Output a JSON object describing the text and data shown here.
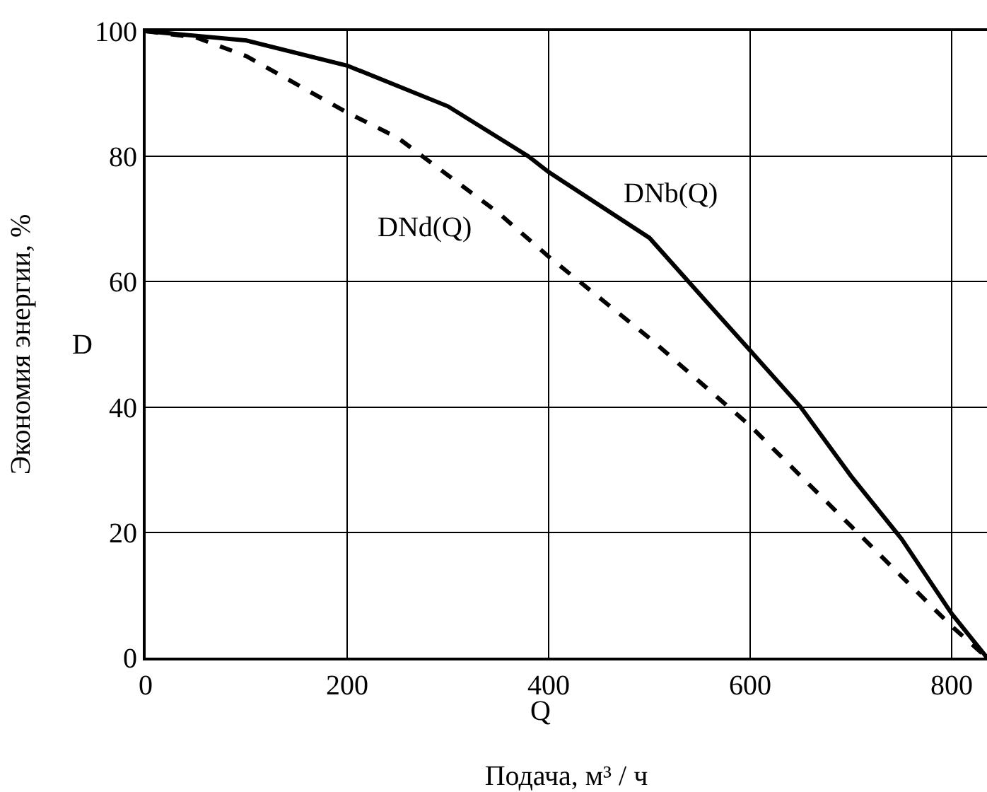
{
  "chart_data": {
    "type": "line",
    "xlabel": "Подача, м³ / ч",
    "ylabel": "Экономия энергии, %",
    "annotations": [
      "Q",
      "D"
    ],
    "xlim": [
      0,
      835
    ],
    "xticks": [
      0,
      200,
      400,
      600,
      800
    ],
    "ylim": [
      0,
      100
    ],
    "yticks": [
      0,
      20,
      40,
      60,
      80,
      100
    ],
    "grid": true,
    "legend": false,
    "marker": "none",
    "series": [
      {
        "name": "DNb(Q)",
        "color": "#000000",
        "line_style": "solid",
        "x": [
          0,
          100,
          200,
          300,
          380,
          400,
          500,
          600,
          650,
          700,
          750,
          800,
          835
        ],
        "values": [
          100,
          98.5,
          94.5,
          88,
          80,
          77.5,
          67,
          49,
          40,
          29,
          19,
          7,
          0
        ]
      },
      {
        "name": "DNd(Q)",
        "color": "#000000",
        "line_style": "dashed",
        "x": [
          0,
          50,
          100,
          200,
          250,
          300,
          350,
          400,
          500,
          600,
          650,
          700,
          750,
          800,
          835
        ],
        "values": [
          100,
          99,
          96,
          87,
          83,
          77,
          71,
          64,
          51,
          37,
          29,
          21,
          13,
          5,
          0
        ]
      }
    ]
  }
}
